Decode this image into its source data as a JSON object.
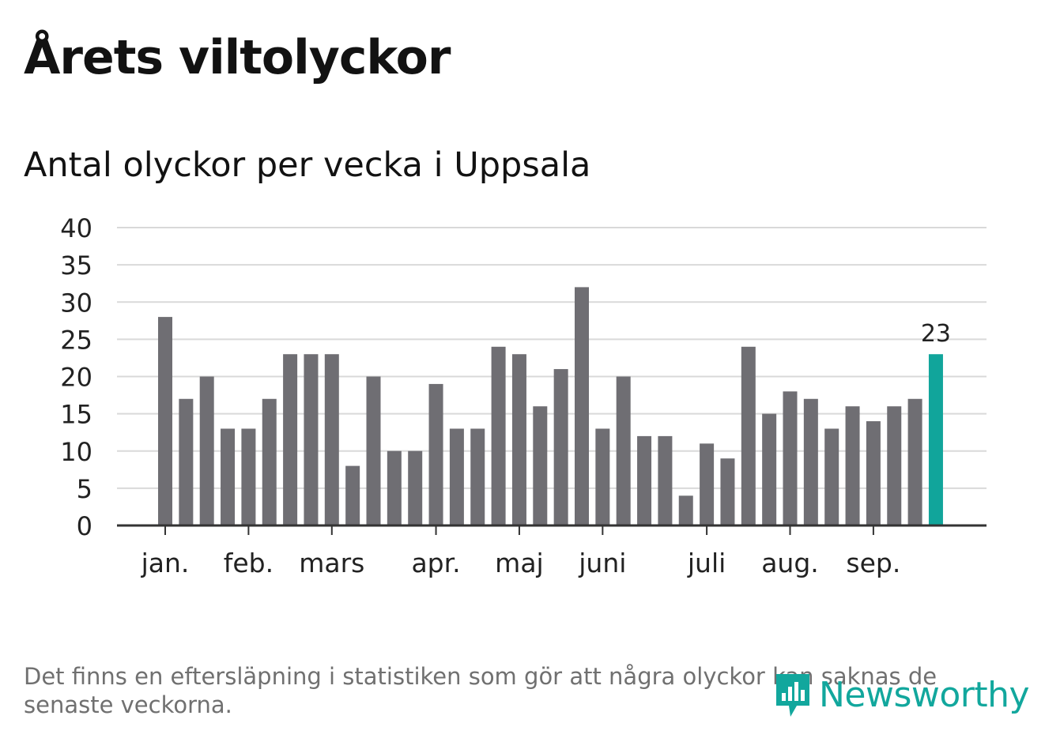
{
  "title": "Årets viltolyckor",
  "subtitle": "Antal olyckor per vecka i Uppsala",
  "footnote": "Det finns en eftersläpning i statistiken som gör att några olyckor kan saknas de senaste veckorna.",
  "logo": {
    "text": "Newsworthy",
    "icon": "newsworthy-logo-icon"
  },
  "colors": {
    "bar": "#6f6e73",
    "highlight": "#11a59b",
    "grid": "#d9d9d9",
    "axis": "#333333",
    "text": "#222222"
  },
  "chart_data": {
    "type": "bar",
    "title": "Antal olyckor per vecka i Uppsala",
    "xlabel": "",
    "ylabel": "",
    "ylim": [
      0,
      40
    ],
    "yticks": [
      0,
      5,
      10,
      15,
      20,
      25,
      30,
      35,
      40
    ],
    "grid": true,
    "values": [
      28,
      17,
      20,
      13,
      13,
      17,
      23,
      23,
      23,
      8,
      20,
      10,
      10,
      19,
      13,
      13,
      24,
      23,
      16,
      21,
      32,
      13,
      20,
      12,
      12,
      4,
      11,
      9,
      24,
      15,
      18,
      17,
      13,
      16,
      14,
      16,
      17,
      23
    ],
    "highlight_index": 37,
    "highlight_label": "23",
    "month_ticks": [
      {
        "label": "jan.",
        "bar_index": 0
      },
      {
        "label": "feb.",
        "bar_index": 4
      },
      {
        "label": "mars",
        "bar_index": 8
      },
      {
        "label": "apr.",
        "bar_index": 13
      },
      {
        "label": "maj",
        "bar_index": 17
      },
      {
        "label": "juni",
        "bar_index": 21
      },
      {
        "label": "juli",
        "bar_index": 26
      },
      {
        "label": "aug.",
        "bar_index": 30
      },
      {
        "label": "sep.",
        "bar_index": 34
      }
    ]
  }
}
